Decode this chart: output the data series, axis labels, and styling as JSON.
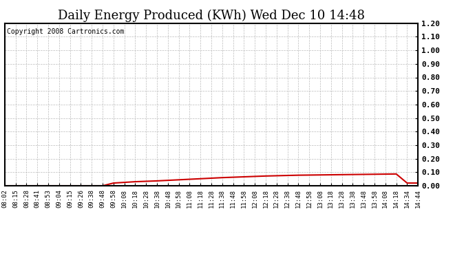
{
  "title": "Daily Energy Produced (KWh) Wed Dec 10 14:48",
  "copyright_text": "Copyright 2008 Cartronics.com",
  "line_color": "#cc0000",
  "background_color": "#ffffff",
  "plot_background": "#ffffff",
  "grid_color": "#bbbbbb",
  "border_color": "#000000",
  "ylim": [
    0.0,
    1.2
  ],
  "yticks": [
    0.0,
    0.1,
    0.2,
    0.3,
    0.4,
    0.5,
    0.6,
    0.7,
    0.8,
    0.9,
    1.0,
    1.1,
    1.2
  ],
  "x_labels": [
    "08:02",
    "08:15",
    "08:28",
    "08:41",
    "08:53",
    "09:04",
    "09:15",
    "09:26",
    "09:38",
    "09:48",
    "09:58",
    "10:08",
    "10:18",
    "10:28",
    "10:38",
    "10:48",
    "10:58",
    "11:08",
    "11:18",
    "11:28",
    "11:38",
    "11:48",
    "11:58",
    "12:08",
    "12:18",
    "12:28",
    "12:38",
    "12:48",
    "12:58",
    "13:08",
    "13:18",
    "13:28",
    "13:38",
    "13:48",
    "13:58",
    "14:08",
    "14:18",
    "14:34",
    "14:44"
  ],
  "y_values": [
    0.0,
    0.0,
    0.0,
    0.0,
    0.0,
    0.0,
    0.0,
    0.0,
    0.0,
    0.0,
    0.02,
    0.025,
    0.03,
    0.033,
    0.036,
    0.04,
    0.044,
    0.048,
    0.052,
    0.056,
    0.06,
    0.063,
    0.066,
    0.069,
    0.072,
    0.074,
    0.076,
    0.078,
    0.079,
    0.08,
    0.081,
    0.082,
    0.083,
    0.084,
    0.085,
    0.086,
    0.087,
    0.02,
    0.02
  ],
  "title_fontsize": 13,
  "copyright_fontsize": 7,
  "ytick_fontsize": 8,
  "xtick_fontsize": 6.5,
  "line_width": 1.5
}
